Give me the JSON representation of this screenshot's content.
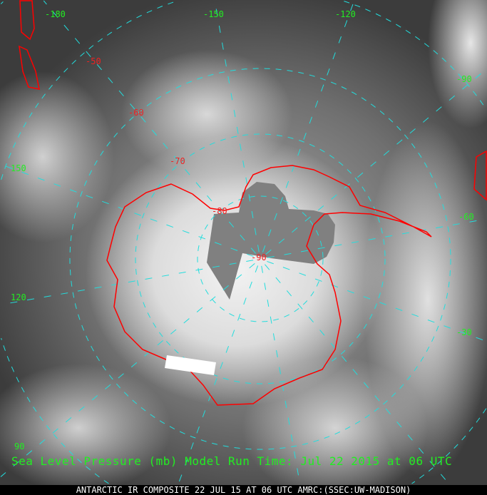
{
  "map": {
    "projection": "polar stereographic (south pole)",
    "imagery": "infrared satellite composite",
    "colors": {
      "graticule": "#22dddd",
      "coastline": "#ff0000",
      "lon_labels": "#22ee22",
      "lat_labels": "#ee2222",
      "no_data": "#808080"
    },
    "longitude_labels": [
      "-180",
      "-150",
      "-120",
      "-90",
      "-60",
      "-30",
      "150",
      "120",
      "90"
    ],
    "latitude_labels": [
      "-50",
      "-60",
      "-70",
      "-80",
      "-90"
    ]
  },
  "overlay_title": "Sea Level Pressure (mb) Model Run Time: Jul 22 2015 at 06 UTC",
  "footer": "ANTARCTIC IR COMPOSITE 22 JUL 15 AT 06 UTC AMRC:(SSEC:UW-MADISON)"
}
